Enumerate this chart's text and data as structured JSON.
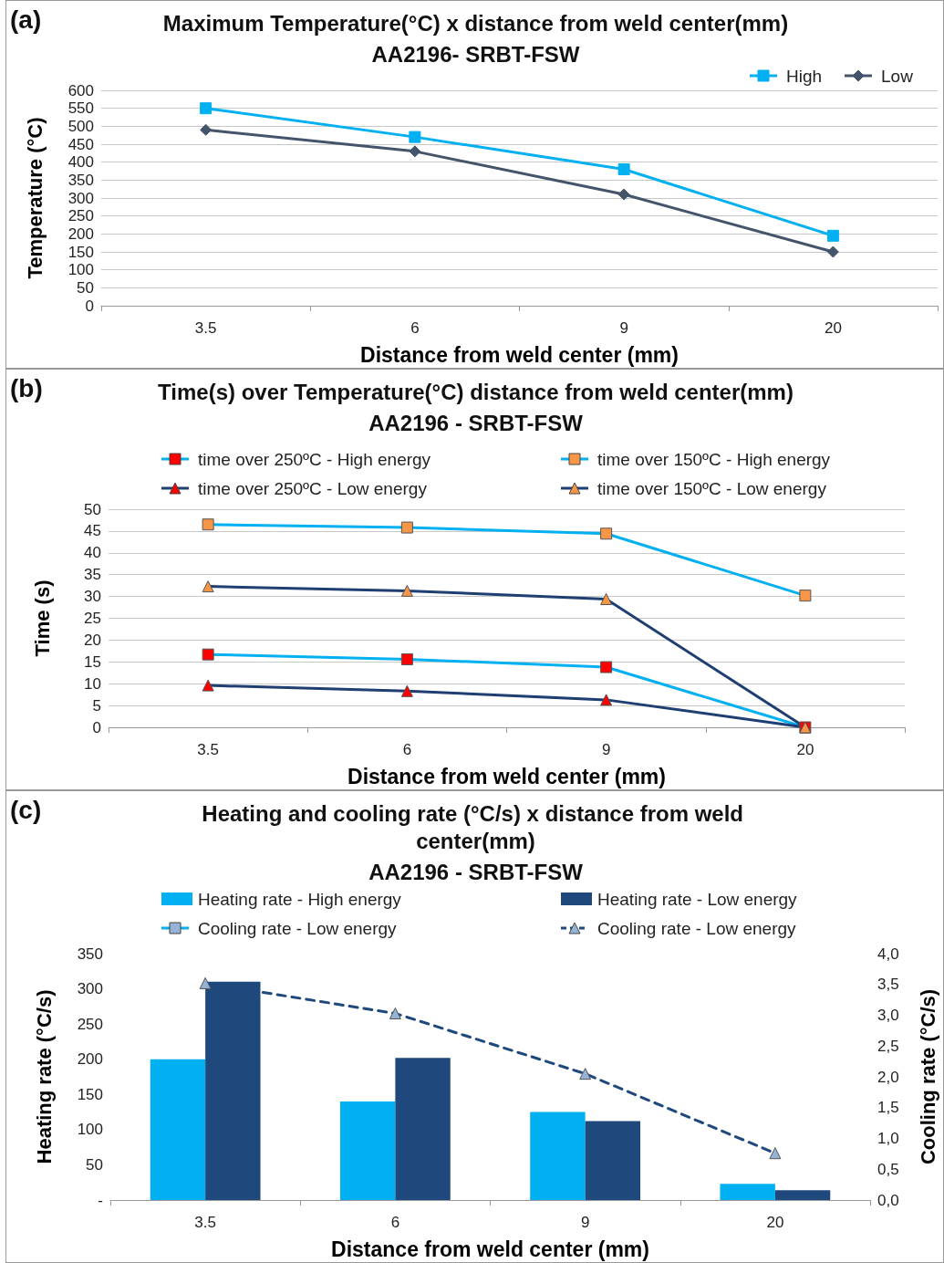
{
  "chart_data": [
    {
      "type": "line",
      "title": "Maximum Temperature(°C) x distance from weld center(mm)",
      "subtitle": "AA2196- SRBT-FSW",
      "xlabel": "Distance from weld center (mm)",
      "ylabel": "Temperature (°C)",
      "annotations": [
        "(a)"
      ],
      "categories": [
        "3.5",
        "6",
        "9",
        "20"
      ],
      "series": [
        {
          "name": "High",
          "color": "#00b0f0",
          "marker": "square",
          "values": [
            550,
            470,
            380,
            195
          ]
        },
        {
          "name": "Low",
          "color": "#44546a",
          "marker": "diamond",
          "values": [
            490,
            430,
            310,
            150
          ]
        }
      ],
      "ylim": [
        0,
        600
      ],
      "yticks": [
        0,
        50,
        100,
        150,
        200,
        250,
        300,
        350,
        400,
        450,
        500,
        550,
        600
      ],
      "grid": "y",
      "legend": "top right",
      "line_style": "solid"
    },
    {
      "type": "line",
      "title": "Time(s) over Temperature(°C) distance from weld center(mm)",
      "subtitle": "AA2196 - SRBT-FSW",
      "xlabel": "Distance from weld center (mm)",
      "ylabel": "Time (s)",
      "annotations": [
        "(b)"
      ],
      "categories": [
        "3.5",
        "6",
        "9",
        "20"
      ],
      "series": [
        {
          "name": "time over 250ºC - High energy",
          "color": "#00b0f0",
          "colors": [
            "#ff0000",
            "#ff0000",
            "#ff0000",
            "#ff0000"
          ],
          "marker": "square",
          "values": [
            16.7,
            15.6,
            13.8,
            0
          ]
        },
        {
          "name": "time over 150ºC - High energy",
          "color": "#00b0f0",
          "colors": [
            "#f79646",
            "#f79646",
            "#f79646",
            "#f79646"
          ],
          "marker": "square",
          "values": [
            46.5,
            45.8,
            44.4,
            30.2
          ]
        },
        {
          "name": "time over 250ºC - Low energy",
          "color": "#1f3f73",
          "colors": [
            "#ff0000",
            "#ff0000",
            "#ff0000",
            "#ff0000"
          ],
          "marker": "triangle",
          "values": [
            9.6,
            8.3,
            6.3,
            0
          ]
        },
        {
          "name": "time over 150ºC - Low energy",
          "color": "#1f3f73",
          "colors": [
            "#f79646",
            "#f79646",
            "#f79646",
            "#f79646"
          ],
          "marker": "triangle",
          "values": [
            32.3,
            31.3,
            29.4,
            0
          ]
        }
      ],
      "ylim": [
        0,
        50
      ],
      "yticks": [
        0,
        5,
        10,
        15,
        20,
        25,
        30,
        35,
        40,
        45,
        50
      ],
      "grid": "y",
      "legend": "top",
      "line_style": "solid"
    },
    {
      "type": "bar",
      "title": "Heating and cooling rate (°C/s) x distance from weld center(mm)",
      "subtitle": "AA2196 - SRBT-FSW",
      "xlabel": "Distance from weld center (mm)",
      "ylabel": "Heating rate (°C/s)",
      "y2label": "Cooling rate (°C/s)",
      "annotations": [
        "(c)"
      ],
      "categories": [
        "3.5",
        "6",
        "9",
        "20"
      ],
      "series": [
        {
          "name": "Heating rate - High energy",
          "color": "#00b0f0",
          "values": [
            200,
            140,
            125,
            23
          ]
        },
        {
          "name": "Heating rate - Low energy",
          "color": "#1f497d",
          "values": [
            310,
            202,
            112,
            14
          ]
        },
        {
          "name": "Cooling rate - Low energy",
          "type": "line",
          "axis": "y2",
          "color": "#00b0f0",
          "colors": [
            "#95b3d7",
            "#95b3d7",
            "#95b3d7",
            "#95b3d7"
          ],
          "marker": "square",
          "line_style": "solid",
          "values": [
            null,
            null,
            null,
            null
          ]
        },
        {
          "name": "Cooling rate - Low energy",
          "type": "line",
          "axis": "y2",
          "color": "#1f497d",
          "colors": [
            "#95b3d7",
            "#95b3d7",
            "#95b3d7",
            "#95b3d7"
          ],
          "marker": "triangle",
          "line_style": "dashed",
          "values": [
            3.52,
            3.03,
            2.05,
            0.76
          ]
        }
      ],
      "ylim": [
        0,
        350
      ],
      "yticks": [
        {
          "value": 0,
          "label": "-"
        },
        50,
        100,
        150,
        200,
        250,
        300,
        350
      ],
      "y2lim": [
        0,
        4
      ],
      "y2ticks": [
        {
          "value": 0,
          "label": "0,0"
        },
        {
          "value": 0.5,
          "label": "0,5"
        },
        {
          "value": 1,
          "label": "1,0"
        },
        {
          "value": 1.5,
          "label": "1,5"
        },
        {
          "value": 2,
          "label": "2,0"
        },
        {
          "value": 2.5,
          "label": "2,5"
        },
        {
          "value": 3,
          "label": "3,0"
        },
        {
          "value": 3.5,
          "label": "3,5"
        },
        {
          "value": 4,
          "label": "4,0"
        }
      ],
      "grid": false,
      "legend": "top"
    }
  ]
}
